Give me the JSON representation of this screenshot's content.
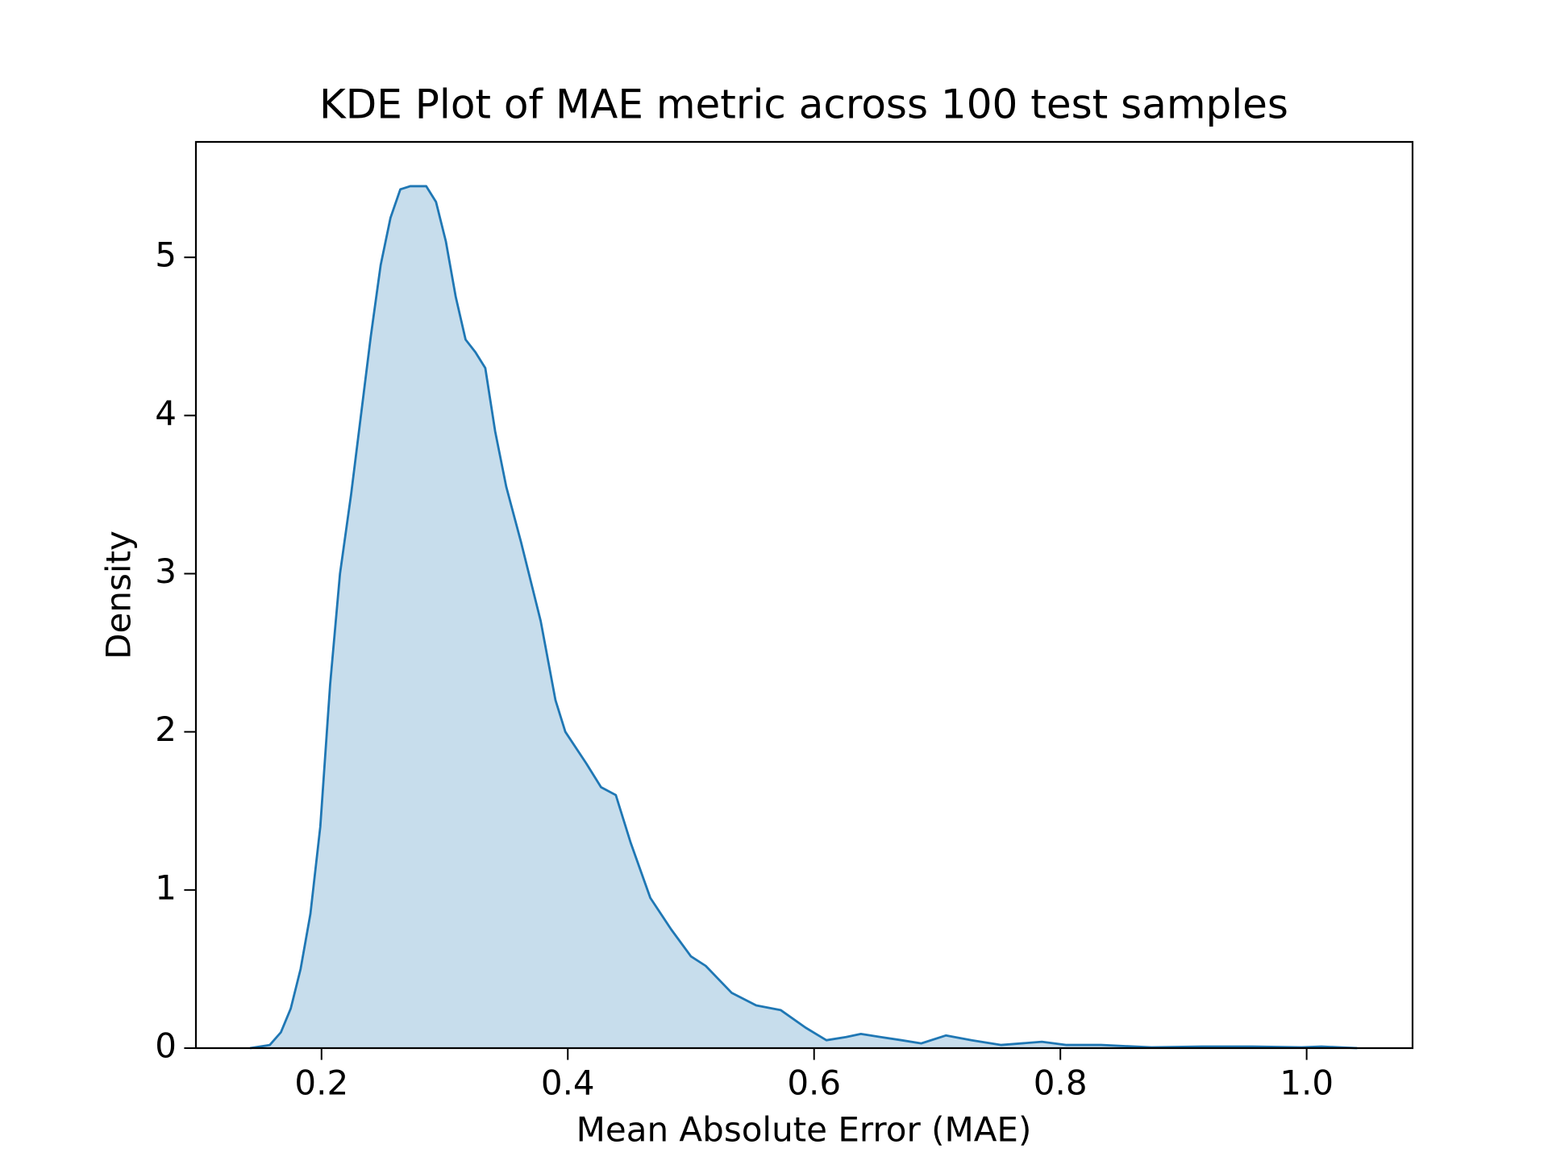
{
  "chart_data": {
    "type": "kde",
    "title": "KDE Plot of MAE metric across 100 test samples",
    "x_label": "Mean Absolute Error (MAE)",
    "y_label": "Density",
    "x": [
      0.142,
      0.158,
      0.167,
      0.175,
      0.183,
      0.191,
      0.199,
      0.207,
      0.215,
      0.224,
      0.232,
      0.24,
      0.248,
      0.256,
      0.264,
      0.272,
      0.285,
      0.293,
      0.301,
      0.309,
      0.317,
      0.325,
      0.333,
      0.341,
      0.35,
      0.362,
      0.378,
      0.39,
      0.398,
      0.415,
      0.427,
      0.439,
      0.451,
      0.467,
      0.484,
      0.5,
      0.512,
      0.533,
      0.553,
      0.573,
      0.593,
      0.61,
      0.626,
      0.638,
      0.654,
      0.671,
      0.687,
      0.707,
      0.728,
      0.752,
      0.785,
      0.805,
      0.833,
      0.874,
      0.915,
      0.956,
      0.996,
      1.012,
      1.041
    ],
    "values": [
      0,
      0.02,
      0.1,
      0.25,
      0.5,
      0.85,
      1.4,
      2.3,
      3.0,
      3.5,
      4.0,
      4.5,
      4.95,
      5.25,
      5.43,
      5.45,
      5.45,
      5.35,
      5.1,
      4.75,
      4.48,
      4.4,
      4.3,
      3.9,
      3.55,
      3.2,
      2.7,
      2.2,
      2.0,
      1.8,
      1.65,
      1.6,
      1.3,
      0.95,
      0.75,
      0.58,
      0.52,
      0.35,
      0.27,
      0.24,
      0.13,
      0.05,
      0.07,
      0.09,
      0.07,
      0.05,
      0.03,
      0.08,
      0.05,
      0.02,
      0.04,
      0.02,
      0.02,
      0.005,
      0.01,
      0.01,
      0.005,
      0.01,
      0
    ],
    "color": "#1f77b4",
    "fill_opacity": 0.25,
    "xlim": [
      0.098,
      1.086
    ],
    "ylim": [
      0,
      5.73
    ],
    "xticks": [
      0.2,
      0.4,
      0.6,
      0.8,
      {
        "value": 1.0,
        "label": "1.0"
      }
    ],
    "yticks": [
      0,
      1,
      2,
      3,
      4,
      5
    ]
  }
}
